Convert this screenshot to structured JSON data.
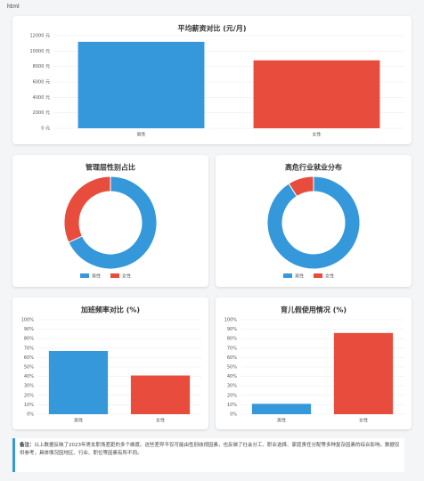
{
  "page_label": "html",
  "chart_data": [
    {
      "type": "bar",
      "title": "平均薪资对比 (元/月)",
      "categories": [
        "男性",
        "女性"
      ],
      "values": [
        11200,
        8800
      ],
      "colors": [
        "#3498db",
        "#e74c3c"
      ],
      "ylim": [
        0,
        12000
      ],
      "yticks": [
        {
          "value": 0,
          "label": "0 元"
        },
        {
          "value": 2000,
          "label": "2000 元"
        },
        {
          "value": 4000,
          "label": "4000 元"
        },
        {
          "value": 6000,
          "label": "6000 元"
        },
        {
          "value": 8000,
          "label": "8000 元"
        },
        {
          "value": 10000,
          "label": "10000 元"
        },
        {
          "value": 12000,
          "label": "12000 元"
        }
      ],
      "grid": true
    },
    {
      "type": "pie",
      "title": "管理层性别占比",
      "categories": [
        "男性",
        "女性"
      ],
      "values": [
        68,
        32
      ],
      "colors": [
        "#3498db",
        "#e74c3c"
      ]
    },
    {
      "type": "pie",
      "title": "高危行业就业分布",
      "categories": [
        "男性",
        "女性"
      ],
      "values": [
        91,
        9
      ],
      "colors": [
        "#3498db",
        "#e74c3c"
      ]
    },
    {
      "type": "bar",
      "title": "加班频率对比 (%)",
      "categories": [
        "男性",
        "女性"
      ],
      "values": [
        67,
        41
      ],
      "colors": [
        "#3498db",
        "#e74c3c"
      ],
      "ylim": [
        0,
        100
      ],
      "yticks": [
        {
          "value": 0,
          "label": "0%"
        },
        {
          "value": 10,
          "label": "10%"
        },
        {
          "value": 20,
          "label": "20%"
        },
        {
          "value": 30,
          "label": "30%"
        },
        {
          "value": 40,
          "label": "40%"
        },
        {
          "value": 50,
          "label": "50%"
        },
        {
          "value": 60,
          "label": "60%"
        },
        {
          "value": 70,
          "label": "70%"
        },
        {
          "value": 80,
          "label": "80%"
        },
        {
          "value": 90,
          "label": "90%"
        },
        {
          "value": 100,
          "label": "100%"
        }
      ],
      "grid": true
    },
    {
      "type": "bar",
      "title": "育儿假使用情况 (%)",
      "categories": [
        "男性",
        "女性"
      ],
      "values": [
        11,
        86
      ],
      "colors": [
        "#3498db",
        "#e74c3c"
      ],
      "ylim": [
        0,
        100
      ],
      "yticks": [
        {
          "value": 0,
          "label": "0%"
        },
        {
          "value": 10,
          "label": "10%"
        },
        {
          "value": 20,
          "label": "20%"
        },
        {
          "value": 30,
          "label": "30%"
        },
        {
          "value": 40,
          "label": "40%"
        },
        {
          "value": 50,
          "label": "50%"
        },
        {
          "value": 60,
          "label": "60%"
        },
        {
          "value": 70,
          "label": "70%"
        },
        {
          "value": 80,
          "label": "80%"
        },
        {
          "value": 90,
          "label": "90%"
        },
        {
          "value": 100,
          "label": "100%"
        }
      ],
      "grid": true
    }
  ],
  "note": {
    "label": "备注：",
    "text": "以上数据反映了2023年男女职场差距的多个维度。这些差异不仅可能由性别歧视因素，也反映了社会分工、职业选择、家庭责任分配等多种复杂因素的综合影响。数据仅供参考，具体情况因地区、行业、职位等因素有所不同。"
  }
}
